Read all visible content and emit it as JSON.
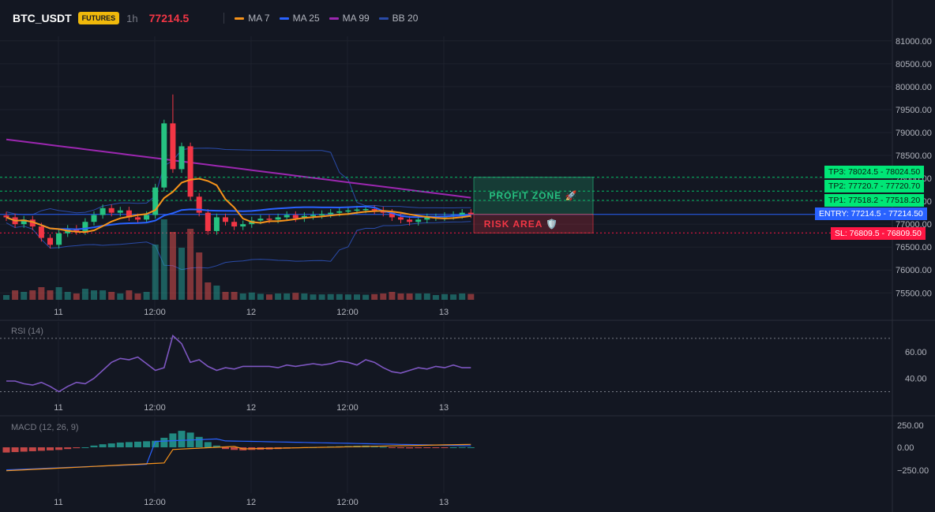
{
  "header": {
    "symbol": "BTC_USDT",
    "badge": "FUTURES",
    "timeframe": "1h",
    "price": "77214.5",
    "indicators": [
      {
        "label": "MA 7",
        "color": "#f7931a"
      },
      {
        "label": "MA 25",
        "color": "#2962ff"
      },
      {
        "label": "MA 99",
        "color": "#9c27b0"
      },
      {
        "label": "BB 20",
        "color": "#2a4ba8"
      }
    ]
  },
  "price_axis": [
    "81000.00",
    "80500.00",
    "80000.00",
    "79500.00",
    "79000.00",
    "78500.00",
    "78000.00",
    "77500.00",
    "77000.00",
    "76500.00",
    "76000.00",
    "75500.00"
  ],
  "time_axis": [
    "11",
    "12:00",
    "12",
    "12:00",
    "13"
  ],
  "levels": {
    "tp3": {
      "label": "TP3: 78024.5",
      "axis": "78024.50",
      "value": 78024.5
    },
    "tp2": {
      "label": "TP2: 77720.7",
      "axis": "77720.70",
      "value": 77720.7
    },
    "tp1": {
      "label": "TP1: 77518.2",
      "axis": "77518.20",
      "value": 77518.2
    },
    "entry": {
      "label": "ENTRY: 77214.5",
      "axis": "77214.50",
      "value": 77214.5
    },
    "sl": {
      "label": "SL: 76809.5",
      "axis": "76809.50",
      "value": 76809.5
    }
  },
  "zones": {
    "profit": "PROFIT ZONE 🚀",
    "risk": "RISK AREA 🛡️"
  },
  "rsi": {
    "label": "RSI (14)",
    "axis": [
      "60.00",
      "40.00"
    ],
    "overbought": 70,
    "oversold": 30
  },
  "macd": {
    "label": "MACD (12, 26, 9)",
    "axis": [
      "250.00",
      "0.00",
      "−250.00"
    ]
  },
  "colors": {
    "up": "#26c281",
    "down": "#f23645",
    "ma7": "#f7931a",
    "ma25": "#2962ff",
    "ma99": "#9c27b0",
    "bb": "#2a4ba8",
    "rsi": "#7e57c2",
    "green_tag": "#00e676",
    "entry_tag": "#2962ff",
    "sl_tag": "#ff1744"
  },
  "chart_data": {
    "type": "candlestick",
    "price_range": [
      75350,
      81100
    ],
    "approx_close": [
      77150,
      77000,
      77100,
      76950,
      76700,
      76550,
      76800,
      76900,
      76850,
      77050,
      77200,
      77350,
      77250,
      77300,
      77150,
      77100,
      77200,
      77800,
      79200,
      78200,
      78700,
      77600,
      77250,
      76850,
      77150,
      77050,
      76950,
      77000,
      77080,
      77120,
      77100,
      77150,
      77200,
      77130,
      77180,
      77200,
      77220,
      77250,
      77280,
      77300,
      77320,
      77330,
      77300,
      77250,
      77150,
      77100,
      77050,
      77100,
      77150,
      77150,
      77180,
      77200,
      77250,
      77214.5
    ],
    "rsi": [
      38,
      38,
      36,
      35,
      37,
      34,
      30,
      34,
      37,
      36,
      40,
      46,
      52,
      55,
      54,
      56,
      51,
      46,
      48,
      72,
      66,
      52,
      54,
      49,
      46,
      48,
      47,
      49,
      49,
      49,
      49,
      48,
      50,
      49,
      50,
      51,
      50,
      51,
      53,
      52,
      50,
      54,
      52,
      48,
      45,
      44,
      46,
      48,
      47,
      49,
      48,
      50,
      48,
      48
    ],
    "macd_hist": [
      -60,
      -55,
      -50,
      -45,
      -40,
      -35,
      -30,
      -20,
      -10,
      0,
      20,
      35,
      45,
      55,
      60,
      65,
      70,
      75,
      110,
      160,
      190,
      170,
      120,
      60,
      20,
      -20,
      -30,
      -35,
      -30,
      -28,
      -25,
      -20,
      -15,
      -10,
      -5,
      0,
      5,
      10,
      12,
      15,
      18,
      20,
      15,
      5,
      -5,
      -10,
      -12,
      -10,
      -8,
      -5,
      -3,
      0,
      2,
      0
    ]
  }
}
